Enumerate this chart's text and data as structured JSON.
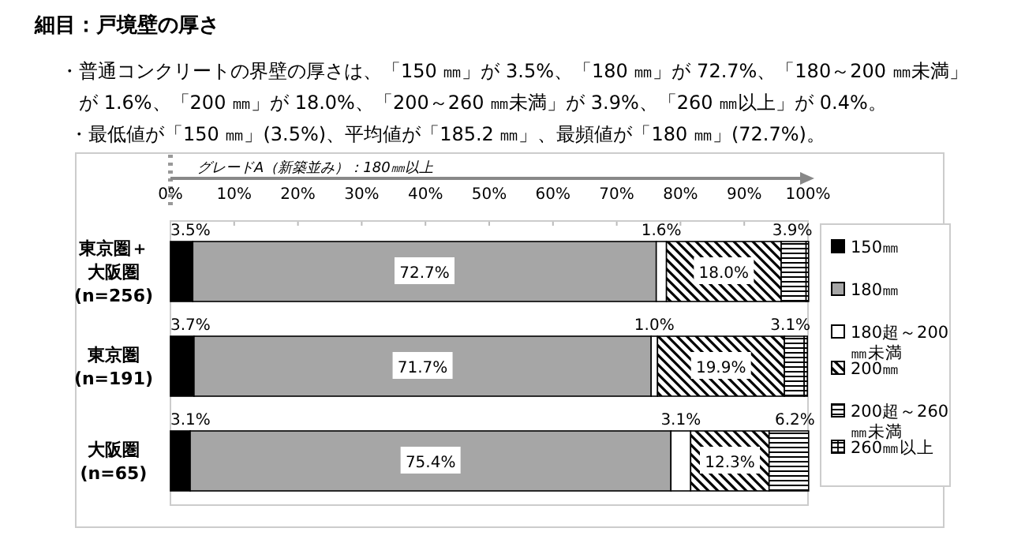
{
  "chart_data": {
    "type": "bar",
    "orientation": "horizontal",
    "stacked": true,
    "title": "細目：戸境壁の厚さ",
    "annotations": [
      "・普通コンクリートの界壁の厚さは、「150 ㎜」が 3.5%、「180 ㎜」が 72.7%、「180～200 ㎜未満」",
      "が 1.6%、「200 ㎜」が 18.0%、「200～260 ㎜未満」が 3.9%、「260 ㎜以上」が 0.4%。",
      "・最低値が「150 ㎜」(3.5%)、平均値が「185.2 ㎜」、最頻値が「180 ㎜」(72.7%)。",
      "グレードA（新築並み）：180㎜以上"
    ],
    "categories": [
      "東京圏＋大阪圏(n=256)",
      "東京圏(n=191)",
      "大阪圏(n=65)"
    ],
    "xlim": [
      0,
      100
    ],
    "xticks": [
      {
        "value": 0,
        "label": "0%"
      },
      {
        "value": 10,
        "label": "10%"
      },
      {
        "value": 20,
        "label": "20%"
      },
      {
        "value": 30,
        "label": "30%"
      },
      {
        "value": 40,
        "label": "40%"
      },
      {
        "value": 50,
        "label": "50%"
      },
      {
        "value": 60,
        "label": "60%"
      },
      {
        "value": 70,
        "label": "70%"
      },
      {
        "value": 80,
        "label": "80%"
      },
      {
        "value": 90,
        "label": "90%"
      },
      {
        "value": 100,
        "label": "100%"
      }
    ],
    "legend": "right",
    "series": [
      {
        "name": "150㎜",
        "color": "#000000",
        "values": [
          3.5,
          3.7,
          3.1
        ],
        "value_labels": [
          "3.5%",
          "3.7%",
          "3.1%"
        ]
      },
      {
        "name": "180㎜",
        "color": "#a6a6a6",
        "values": [
          72.7,
          71.7,
          75.4
        ],
        "value_labels": [
          "72.7%",
          "71.7%",
          "75.4%"
        ]
      },
      {
        "name": "180超～200㎜未満",
        "color": "#ffffff",
        "values": [
          1.6,
          1.0,
          3.1
        ],
        "value_labels": [
          "1.6%",
          "1.0%",
          "3.1%"
        ]
      },
      {
        "name": "200㎜",
        "color": "#000000",
        "values": [
          18.0,
          19.9,
          12.3
        ],
        "value_labels": [
          "18.0%",
          "19.9%",
          "12.3%"
        ]
      },
      {
        "name": "200超～260㎜未満",
        "color": "#000000",
        "values": [
          3.9,
          3.1,
          6.2
        ],
        "value_labels": [
          "3.9%",
          "3.1%",
          "6.2%"
        ]
      },
      {
        "name": "260㎜以上",
        "color": "#000000",
        "values": [
          0.4,
          0.5,
          null
        ],
        "value_labels": [
          null,
          null,
          null
        ]
      }
    ]
  }
}
